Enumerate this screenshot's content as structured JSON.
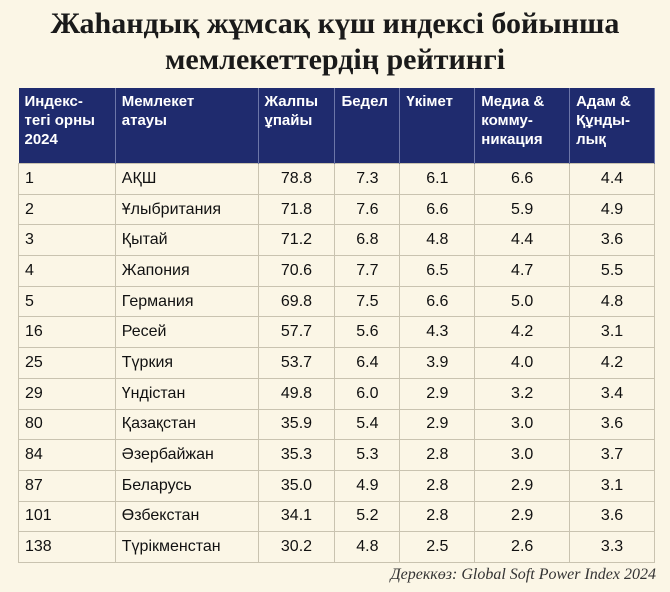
{
  "header": {
    "title": "Жаһандық жұмсақ күш индексі бойынша\nмемлекеттердің рейтингі"
  },
  "table": {
    "columns": [
      "Индекс-\nтегі орны\n2024",
      "Мемлекет\nатауы",
      "Жалпы\nұпайы",
      "Бедел",
      "Үкімет",
      "Медиа &\nкомму-\nникация",
      "Адам &\nҚұнды-\nлық"
    ],
    "rows": [
      [
        "1",
        "АҚШ",
        "78.8",
        "7.3",
        "6.1",
        "6.6",
        "4.4"
      ],
      [
        "2",
        "Ұлыбритания",
        "71.8",
        "7.6",
        "6.6",
        "5.9",
        "4.9"
      ],
      [
        "3",
        "Қытай",
        "71.2",
        "6.8",
        "4.8",
        "4.4",
        "3.6"
      ],
      [
        "4",
        "Жапония",
        "70.6",
        "7.7",
        "6.5",
        "4.7",
        "5.5"
      ],
      [
        "5",
        "Германия",
        "69.8",
        "7.5",
        "6.6",
        "5.0",
        "4.8"
      ],
      [
        "16",
        "Ресей",
        "57.7",
        "5.6",
        "4.3",
        "4.2",
        "3.1"
      ],
      [
        "25",
        "Түркия",
        "53.7",
        "6.4",
        "3.9",
        "4.0",
        "4.2"
      ],
      [
        "29",
        "Үндістан",
        "49.8",
        "6.0",
        "2.9",
        "3.2",
        "3.4"
      ],
      [
        "80",
        "Қазақстан",
        "35.9",
        "5.4",
        "2.9",
        "3.0",
        "3.6"
      ],
      [
        "84",
        "Әзербайжан",
        "35.3",
        "5.3",
        "2.8",
        "3.0",
        "3.7"
      ],
      [
        "87",
        "Беларусь",
        "35.0",
        "4.9",
        "2.8",
        "2.9",
        "3.1"
      ],
      [
        "101",
        "Өзбекстан",
        "34.1",
        "5.2",
        "2.8",
        "2.9",
        "3.6"
      ],
      [
        "138",
        "Түрікменстан",
        "30.2",
        "4.8",
        "2.5",
        "2.6",
        "3.3"
      ]
    ]
  },
  "footer": {
    "source": "Дереккөз: Global Soft Power Index 2024"
  }
}
